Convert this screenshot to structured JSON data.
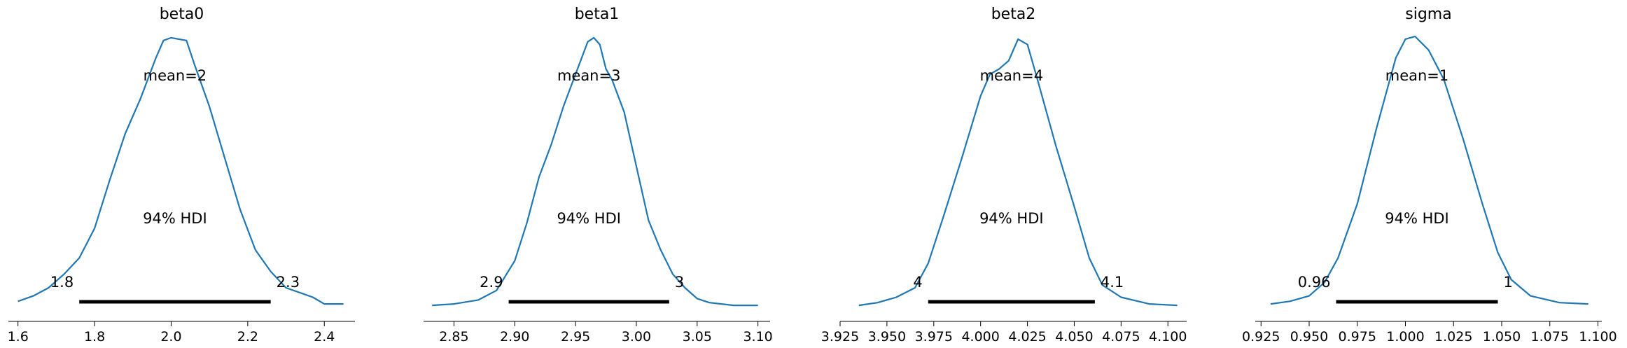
{
  "chart_data": [
    {
      "type": "area",
      "title": "beta0",
      "mean_label": "mean=2",
      "hdi_label": "94% HDI",
      "hdi": [
        1.76,
        2.26
      ],
      "hdi_low_label": "1.8",
      "hdi_high_label": "2.3",
      "xlim": [
        1.575,
        2.48
      ],
      "xticks": [
        1.6,
        1.8,
        2.0,
        2.2,
        2.4
      ],
      "xtick_labels": [
        "1.6",
        "1.8",
        "2.0",
        "2.2",
        "2.4"
      ],
      "density": [
        [
          1.6,
          0.02
        ],
        [
          1.64,
          0.04
        ],
        [
          1.68,
          0.07
        ],
        [
          1.72,
          0.12
        ],
        [
          1.76,
          0.18
        ],
        [
          1.8,
          0.29
        ],
        [
          1.84,
          0.47
        ],
        [
          1.88,
          0.64
        ],
        [
          1.92,
          0.77
        ],
        [
          1.96,
          0.92
        ],
        [
          1.98,
          0.985
        ],
        [
          2.0,
          0.995
        ],
        [
          2.02,
          0.99
        ],
        [
          2.04,
          0.985
        ],
        [
          2.06,
          0.9
        ],
        [
          2.1,
          0.74
        ],
        [
          2.14,
          0.55
        ],
        [
          2.18,
          0.36
        ],
        [
          2.22,
          0.21
        ],
        [
          2.26,
          0.13
        ],
        [
          2.3,
          0.07
        ],
        [
          2.34,
          0.05
        ],
        [
          2.37,
          0.035
        ],
        [
          2.4,
          0.01
        ],
        [
          2.45,
          0.01
        ]
      ]
    },
    {
      "type": "area",
      "title": "beta1",
      "mean_label": "mean=3",
      "hdi_label": "94% HDI",
      "hdi": [
        2.895,
        3.027
      ],
      "hdi_low_label": "2.9",
      "hdi_high_label": "3",
      "xlim": [
        2.825,
        3.11
      ],
      "xticks": [
        2.85,
        2.9,
        2.95,
        3.0,
        3.05,
        3.1
      ],
      "xtick_labels": [
        "2.85",
        "2.90",
        "2.95",
        "3.00",
        "3.05",
        "3.10"
      ],
      "density": [
        [
          2.832,
          0.005
        ],
        [
          2.85,
          0.01
        ],
        [
          2.87,
          0.025
        ],
        [
          2.885,
          0.06
        ],
        [
          2.9,
          0.17
        ],
        [
          2.91,
          0.31
        ],
        [
          2.92,
          0.48
        ],
        [
          2.93,
          0.6
        ],
        [
          2.94,
          0.74
        ],
        [
          2.95,
          0.86
        ],
        [
          2.96,
          0.98
        ],
        [
          2.965,
          0.995
        ],
        [
          2.97,
          0.97
        ],
        [
          2.975,
          0.88
        ],
        [
          2.98,
          0.84
        ],
        [
          2.99,
          0.72
        ],
        [
          3.0,
          0.52
        ],
        [
          3.01,
          0.32
        ],
        [
          3.02,
          0.21
        ],
        [
          3.03,
          0.12
        ],
        [
          3.04,
          0.07
        ],
        [
          3.05,
          0.03
        ],
        [
          3.06,
          0.015
        ],
        [
          3.08,
          0.005
        ],
        [
          3.1,
          0.005
        ]
      ]
    },
    {
      "type": "area",
      "title": "beta2",
      "mean_label": "mean=4",
      "hdi_label": "94% HDI",
      "hdi": [
        3.972,
        4.061
      ],
      "hdi_low_label": "4",
      "hdi_high_label": "4.1",
      "xlim": [
        3.925,
        4.11
      ],
      "xticks": [
        3.925,
        3.95,
        3.975,
        4.0,
        4.025,
        4.05,
        4.075,
        4.1
      ],
      "xtick_labels": [
        "3.925",
        "3.950",
        "3.975",
        "4.000",
        "4.025",
        "4.050",
        "4.075",
        "4.100"
      ],
      "density": [
        [
          3.935,
          0.005
        ],
        [
          3.945,
          0.015
        ],
        [
          3.955,
          0.035
        ],
        [
          3.965,
          0.07
        ],
        [
          3.972,
          0.16
        ],
        [
          3.98,
          0.33
        ],
        [
          3.99,
          0.55
        ],
        [
          4.0,
          0.78
        ],
        [
          4.005,
          0.86
        ],
        [
          4.01,
          0.88
        ],
        [
          4.015,
          0.91
        ],
        [
          4.02,
          0.99
        ],
        [
          4.025,
          0.97
        ],
        [
          4.03,
          0.85
        ],
        [
          4.04,
          0.6
        ],
        [
          4.05,
          0.37
        ],
        [
          4.058,
          0.18
        ],
        [
          4.065,
          0.08
        ],
        [
          4.075,
          0.035
        ],
        [
          4.09,
          0.01
        ],
        [
          4.105,
          0.005
        ]
      ]
    },
    {
      "type": "area",
      "title": "sigma",
      "mean_label": "mean=1",
      "hdi_label": "94% HDI",
      "hdi": [
        0.964,
        1.048
      ],
      "hdi_low_label": "0.96",
      "hdi_high_label": "1",
      "xlim": [
        0.922,
        1.102
      ],
      "xticks": [
        0.925,
        0.95,
        0.975,
        1.0,
        1.025,
        1.05,
        1.075,
        1.1
      ],
      "xtick_labels": [
        "0.925",
        "0.950",
        "0.975",
        "1.000",
        "1.025",
        "1.050",
        "1.075",
        "1.100"
      ],
      "density": [
        [
          0.93,
          0.01
        ],
        [
          0.94,
          0.02
        ],
        [
          0.95,
          0.04
        ],
        [
          0.958,
          0.09
        ],
        [
          0.965,
          0.18
        ],
        [
          0.975,
          0.38
        ],
        [
          0.985,
          0.66
        ],
        [
          0.995,
          0.92
        ],
        [
          1.0,
          0.99
        ],
        [
          1.005,
          1.0
        ],
        [
          1.012,
          0.95
        ],
        [
          1.02,
          0.84
        ],
        [
          1.03,
          0.62
        ],
        [
          1.04,
          0.38
        ],
        [
          1.048,
          0.2
        ],
        [
          1.055,
          0.1
        ],
        [
          1.065,
          0.04
        ],
        [
          1.08,
          0.015
        ],
        [
          1.095,
          0.01
        ]
      ]
    }
  ]
}
